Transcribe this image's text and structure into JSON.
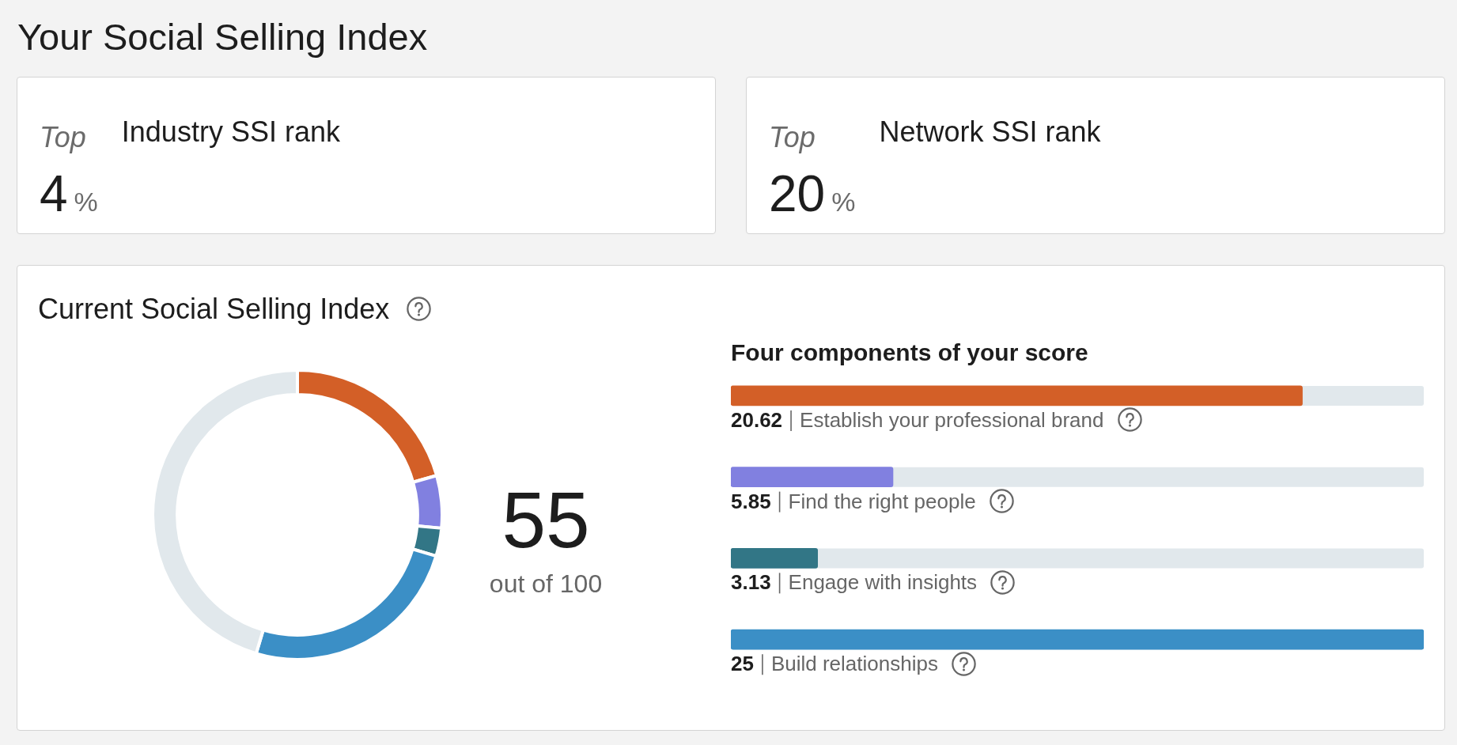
{
  "chart_data": [
    {
      "type": "other",
      "title": "Your Social Selling Index",
      "categories": [
        "Industry SSI rank",
        "Network SSI rank"
      ],
      "values": [
        4,
        20
      ],
      "data_labels": true,
      "annotations": [
        "Top",
        "%"
      ]
    },
    {
      "type": "donut",
      "title": "Current Social Selling Index",
      "categories": [
        null,
        null,
        null,
        null,
        null
      ],
      "values": [
        20.62,
        5.85,
        3.13,
        25,
        45.4
      ],
      "colors": [
        "#d35f27",
        "#8180e0",
        "#327686",
        "#3b8fc6",
        "#e1e8ec"
      ],
      "annotations": [
        "55",
        "out of 100"
      ]
    },
    {
      "type": "bar",
      "title": "Four components of your score",
      "orientation": "horizontal",
      "categories": [
        "Establish your professional brand",
        "Find the right people",
        "Engage with insights",
        "Build relationships"
      ],
      "values": [
        20.62,
        5.85,
        3.13,
        25
      ],
      "colors": [
        "#d35f27",
        "#8180e0",
        "#327686",
        "#3b8fc6"
      ],
      "xlim": [
        0,
        25
      ],
      "data_labels": true,
      "tick_labels": "y"
    }
  ]
}
